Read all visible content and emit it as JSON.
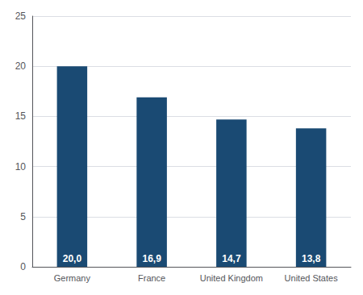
{
  "chart_data": {
    "type": "bar",
    "categories": [
      "Germany",
      "France",
      "United Kingdom",
      "United States"
    ],
    "values": [
      20.0,
      16.9,
      14.7,
      13.8
    ],
    "value_labels": [
      "20,0",
      "16,9",
      "14,7",
      "13,8"
    ],
    "color": "#1a4a73",
    "ylim": [
      0,
      25
    ],
    "yticks": [
      0,
      5,
      10,
      15,
      20,
      25
    ],
    "grid": true,
    "data_labels": true
  }
}
